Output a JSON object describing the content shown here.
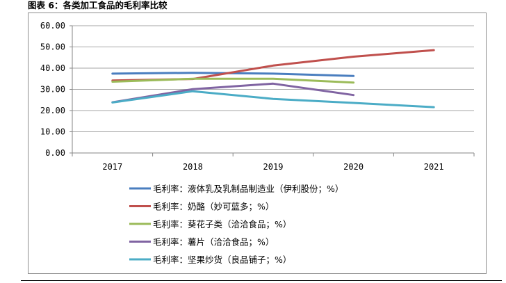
{
  "figure_title": "图表 6：各类加工食品的毛利率比较",
  "chart_data": {
    "type": "line",
    "title": "",
    "xlabel": "",
    "ylabel": "",
    "categories": [
      "2017",
      "2018",
      "2019",
      "2020",
      "2021"
    ],
    "ylim": [
      0,
      60
    ],
    "yticks": [
      "0.00",
      "10.00",
      "20.00",
      "30.00",
      "40.00",
      "50.00",
      "60.00"
    ],
    "grid": "horizontal",
    "legend_position": "bottom",
    "series": [
      {
        "name": "毛利率：液体乳及乳制品制造业（伊利股份；%）",
        "color": "#4a7ebf",
        "values": [
          37.4,
          37.8,
          37.4,
          36.3,
          null
        ]
      },
      {
        "name": "毛利率：奶酪（妙可蓝多；%）",
        "color": "#c0504d",
        "values": [
          34.2,
          34.9,
          41.2,
          45.4,
          48.5
        ]
      },
      {
        "name": "毛利率：葵花子类（洽洽食品；%）",
        "color": "#9bbb59",
        "values": [
          33.6,
          35.0,
          35.0,
          33.2,
          null
        ]
      },
      {
        "name": "毛利率：薯片（洽洽食品；%）",
        "color": "#8064a2",
        "values": [
          23.9,
          30.1,
          32.7,
          27.3,
          null
        ]
      },
      {
        "name": "毛利率：坚果炒货（良品铺子；%）",
        "color": "#4bacc6",
        "values": [
          23.8,
          29.1,
          25.5,
          23.6,
          21.6
        ]
      }
    ]
  }
}
